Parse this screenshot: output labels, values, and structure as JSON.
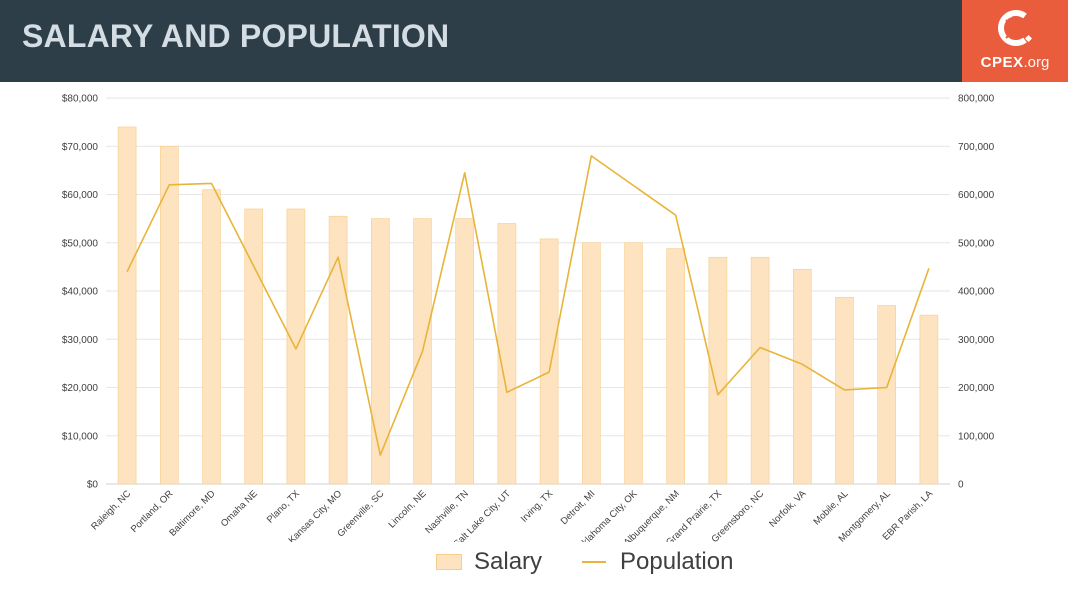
{
  "header": {
    "title": "SALARY AND POPULATION",
    "brand_name": "CPEX",
    "brand_suffix": ".org"
  },
  "colors": {
    "header_bg": "#2e3e48",
    "brand_bg": "#ea5d3c",
    "bar_fill": "#fde3c0",
    "bar_stroke": "#f7cd8d",
    "line": "#e8b43a"
  },
  "chart_data": {
    "type": "bar",
    "categories": [
      "Raleigh, NC",
      "Portland, OR",
      "Baltimore, MD",
      "Omaha NE",
      "Plano, TX",
      "Kansas City, MO",
      "Greenville, SC",
      "Lincoln, NE",
      "Nashville, TN",
      "Salt Lake City, UT",
      "Irving, TX",
      "Detroit, MI",
      "Oklahoma City, OK",
      "Albuquerque, NM",
      "Grand Prairie, TX",
      "Greensboro, NC",
      "Norfolk, VA",
      "Mobile, AL",
      "Montgomery, AL",
      "EBR Parish, LA"
    ],
    "series": [
      {
        "name": "Salary",
        "type": "bar",
        "axis": "left",
        "values": [
          74000,
          70000,
          61000,
          57000,
          57000,
          55500,
          55000,
          55000,
          55000,
          54000,
          50800,
          50000,
          50000,
          48800,
          47000,
          47000,
          44500,
          38700,
          37000,
          35000
        ]
      },
      {
        "name": "Population",
        "type": "line",
        "axis": "right",
        "values": [
          440000,
          620000,
          623000,
          null,
          280000,
          470000,
          60000,
          275000,
          645000,
          190000,
          232000,
          680000,
          null,
          557000,
          185000,
          283000,
          248000,
          195000,
          200000,
          447000
        ]
      }
    ],
    "y_left": {
      "min": 0,
      "max": 80000,
      "ticks": [
        "$0",
        "$10,000",
        "$20,000",
        "$30,000",
        "$40,000",
        "$50,000",
        "$60,000",
        "$70,000",
        "$80,000"
      ]
    },
    "y_right": {
      "min": 0,
      "max": 800000,
      "ticks": [
        "0",
        "100,000",
        "200,000",
        "300,000",
        "400,000",
        "500,000",
        "600,000",
        "700,000",
        "800,000"
      ]
    },
    "grid": true,
    "legend_position": "bottom"
  }
}
